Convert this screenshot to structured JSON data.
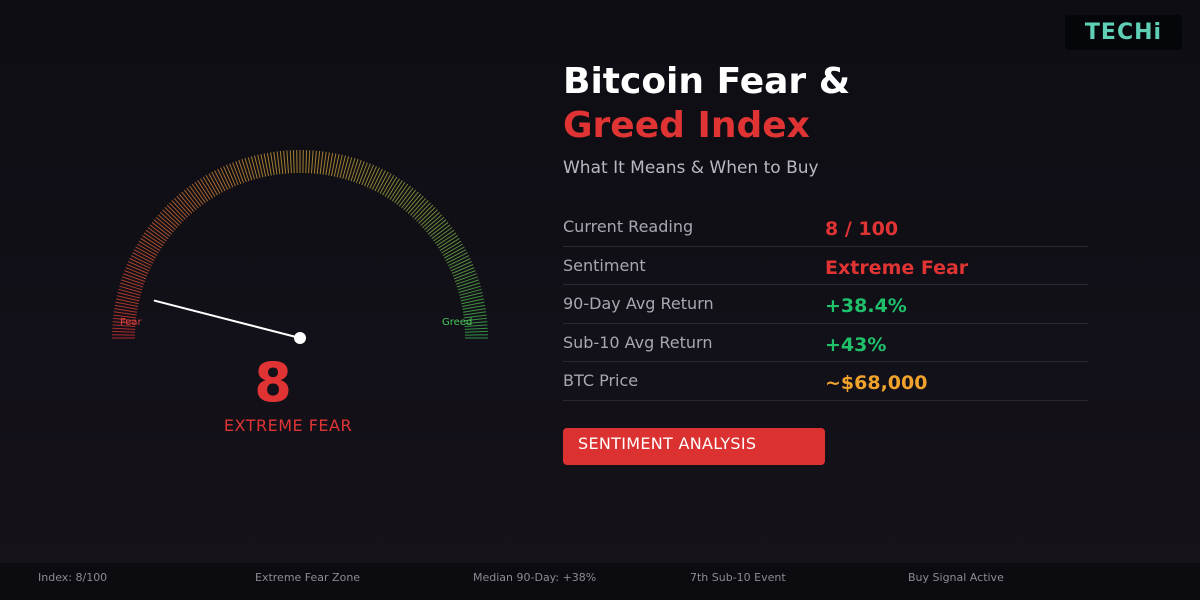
{
  "brand": {
    "logo_text": "TECHi",
    "logo_color": "#5fd0b5"
  },
  "gauge": {
    "value": 8,
    "max": 100,
    "value_text": "8",
    "sentiment": "EXTREME FEAR",
    "left_label": "Fear",
    "right_label": "Greed",
    "colors": {
      "fear": "#e03434",
      "neutral": "#d4a53a",
      "greed": "#3fbf57"
    }
  },
  "header": {
    "title_line1": "Bitcoin Fear &",
    "title_line2": "Greed Index",
    "subtitle": "What It Means & When to Buy"
  },
  "stats": [
    {
      "label": "Current Reading",
      "value": "8 / 100",
      "color": "#e03434"
    },
    {
      "label": "Sentiment",
      "value": "Extreme Fear",
      "color": "#e03434"
    },
    {
      "label": "90-Day Avg Return",
      "value": "+38.4%",
      "color": "#1fc16b"
    },
    {
      "label": "Sub-10 Avg Return",
      "value": "+43%",
      "color": "#1fc16b"
    },
    {
      "label": "BTC Price",
      "value": "~$68,000",
      "color": "#f0a22c"
    }
  ],
  "cta": {
    "label": "SENTIMENT ANALYSIS"
  },
  "footer": [
    "Index: 8/100",
    "Extreme Fear Zone",
    "Median 90-Day: +38%",
    "7th Sub-10 Event",
    "Buy Signal Active"
  ]
}
